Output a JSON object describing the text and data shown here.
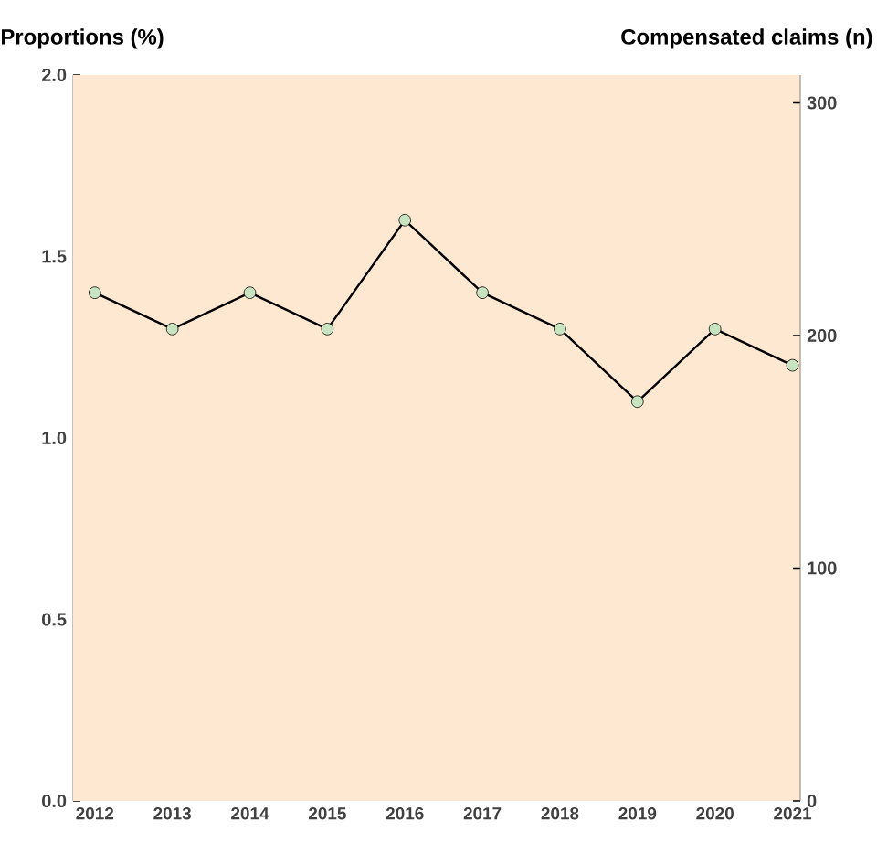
{
  "chart_data": {
    "type": "line",
    "ylabel": "Proportions (%)",
    "y2label": "Compensated claims (n)",
    "categories": [
      "2012",
      "2013",
      "2014",
      "2015",
      "2016",
      "2017",
      "2018",
      "2019",
      "2020",
      "2021"
    ],
    "series": [
      {
        "color": "#000000",
        "values": [
          1.4,
          1.3,
          1.4,
          1.3,
          1.6,
          1.4,
          1.3,
          1.1,
          1.3,
          1.2
        ]
      }
    ],
    "ylim": [
      0,
      2.0
    ],
    "yticks": [
      {
        "value": 0,
        "label": "0.0"
      },
      0.5,
      {
        "value": 1,
        "label": "1.0"
      },
      1.5,
      {
        "value": 2,
        "label": "2.0"
      }
    ],
    "y2lim": [
      0,
      312
    ],
    "y2ticks": [
      0,
      100,
      200,
      300
    ],
    "marker": "circle",
    "line_style": "solid"
  }
}
